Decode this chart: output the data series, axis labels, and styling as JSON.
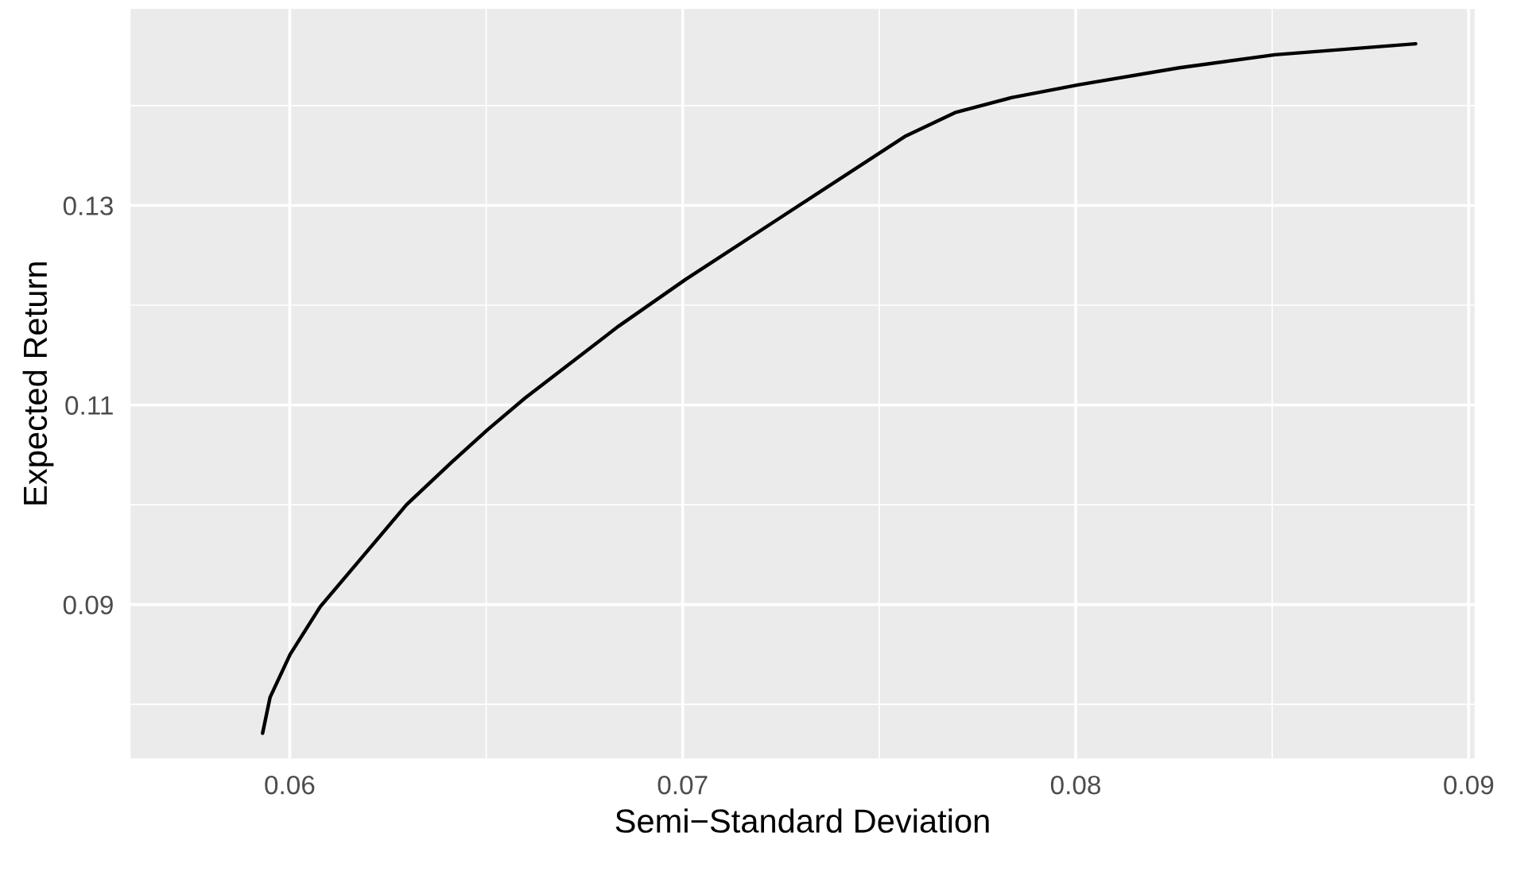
{
  "chart_data": {
    "type": "line",
    "xlabel": "Semi−Standard Deviation",
    "ylabel": "Expected Return",
    "x": [
      0.05931,
      0.0595,
      0.06001,
      0.06078,
      0.06194,
      0.06297,
      0.06413,
      0.06503,
      0.06599,
      0.06837,
      0.07008,
      0.07265,
      0.07565,
      0.07693,
      0.07836,
      0.08008,
      0.08264,
      0.08507,
      0.08865
    ],
    "series": [
      {
        "color": "#000000",
        "values": [
          0.0771,
          0.0807,
          0.085,
          0.0898,
          0.0952,
          0.1,
          0.1043,
          0.1075,
          0.1107,
          0.1179,
          0.1226,
          0.1292,
          0.1369,
          0.1393,
          0.1408,
          0.1421,
          0.1438,
          0.1451,
          0.1462
        ]
      }
    ],
    "xlim": [
      0.05595,
      0.09015
    ],
    "ylim": [
      0.07458,
      0.1497
    ],
    "xticks": [
      0.06,
      0.07,
      0.08,
      0.09
    ],
    "yticks": [
      0.09,
      0.11,
      0.13
    ],
    "grid": true,
    "line_style": "solid",
    "marker": "none"
  }
}
